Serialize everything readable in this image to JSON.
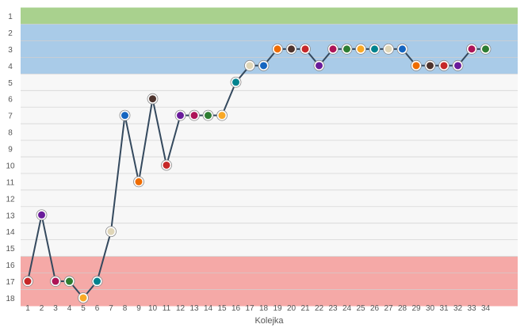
{
  "chart_data": {
    "type": "line",
    "xlabel": "Kolejka",
    "ylabel": "",
    "x": [
      1,
      2,
      3,
      4,
      5,
      6,
      7,
      8,
      9,
      10,
      11,
      12,
      13,
      14,
      15,
      16,
      17,
      18,
      19,
      20,
      21,
      22,
      23,
      24,
      25,
      26,
      27,
      28,
      29,
      30,
      31,
      32,
      33,
      34
    ],
    "values": [
      17,
      13,
      17,
      17,
      18,
      17,
      14,
      7,
      11,
      6,
      10,
      7,
      7,
      7,
      7,
      5,
      4,
      4,
      3,
      3,
      3,
      4,
      3,
      3,
      3,
      3,
      3,
      3,
      4,
      4,
      4,
      4,
      3,
      3
    ],
    "xlim": [
      1,
      34
    ],
    "ylim": [
      1,
      18
    ],
    "y_ticks": [
      1,
      2,
      3,
      4,
      5,
      6,
      7,
      8,
      9,
      10,
      11,
      12,
      13,
      14,
      15,
      16,
      17,
      18
    ],
    "y_inverted": true,
    "grid": true,
    "line_color": "#34495e",
    "marker": "club-crest",
    "bands": [
      {
        "from": 0.5,
        "to": 1.5,
        "color": "#a9d18e"
      },
      {
        "from": 1.5,
        "to": 4.5,
        "color": "#a9cbe8"
      },
      {
        "from": 15.5,
        "to": 18.5,
        "color": "#f5a9a7"
      }
    ]
  }
}
